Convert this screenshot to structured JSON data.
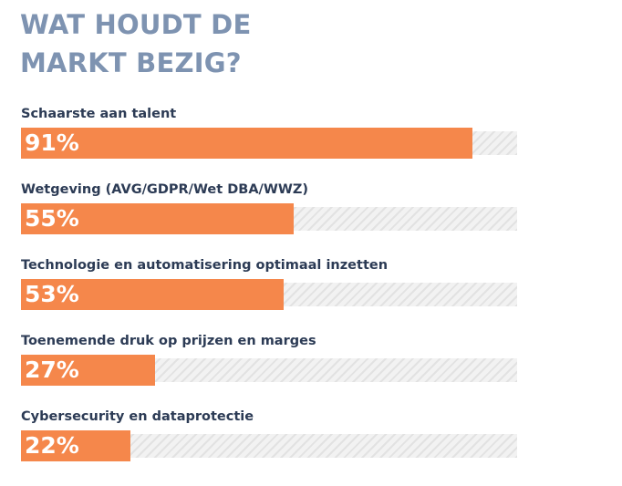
{
  "chart_data": {
    "type": "bar",
    "orientation": "horizontal",
    "title_lines": [
      "WAT HOUDT DE",
      "MARKT BEZIG?"
    ],
    "categories": [
      "Schaarste aan talent",
      "Wetgeving (AVG/GDPR/Wet DBA/WWZ)",
      "Technologie en automatisering optimaal inzetten",
      "Toenemende druk op prijzen en marges",
      "Cybersecurity en dataprotectie"
    ],
    "values": [
      91,
      55,
      53,
      27,
      22
    ],
    "value_labels": [
      "91%",
      "55%",
      "53%",
      "27%",
      "22%"
    ],
    "xlim": [
      0,
      100
    ],
    "grid": false,
    "legend": "none",
    "colors": {
      "bar": "#f5874b",
      "track": "#efefef",
      "title": "#7e93b1",
      "label": "#2c3b55",
      "value_text": "#ffffff"
    }
  }
}
